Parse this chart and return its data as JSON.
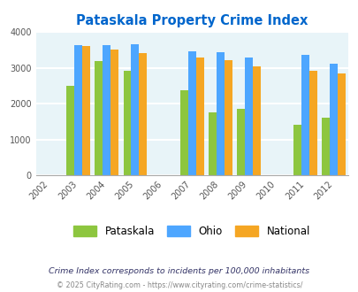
{
  "title": "Pataskala Property Crime Index",
  "all_years": [
    2002,
    2003,
    2004,
    2005,
    2006,
    2007,
    2008,
    2009,
    2010,
    2011,
    2012
  ],
  "data_years": [
    2003,
    2004,
    2005,
    2007,
    2008,
    2009,
    2011,
    2012
  ],
  "pataskala": [
    2500,
    3180,
    2920,
    2370,
    1760,
    1850,
    1420,
    1600
  ],
  "ohio": [
    3630,
    3630,
    3660,
    3470,
    3430,
    3280,
    3360,
    3110
  ],
  "national": [
    3600,
    3520,
    3420,
    3280,
    3210,
    3040,
    2910,
    2850
  ],
  "color_pataskala": "#8dc63f",
  "color_ohio": "#4da6ff",
  "color_national": "#f5a623",
  "ylim": [
    0,
    4000
  ],
  "yticks": [
    0,
    1000,
    2000,
    3000,
    4000
  ],
  "bar_width": 0.28,
  "background_color": "#e8f4f8",
  "grid_color": "#ffffff",
  "title_color": "#0066cc",
  "label_color": "#555555",
  "footer_text1": "Crime Index corresponds to incidents per 100,000 inhabitants",
  "footer_text2": "© 2025 CityRating.com - https://www.cityrating.com/crime-statistics/",
  "legend_labels": [
    "Pataskala",
    "Ohio",
    "National"
  ]
}
